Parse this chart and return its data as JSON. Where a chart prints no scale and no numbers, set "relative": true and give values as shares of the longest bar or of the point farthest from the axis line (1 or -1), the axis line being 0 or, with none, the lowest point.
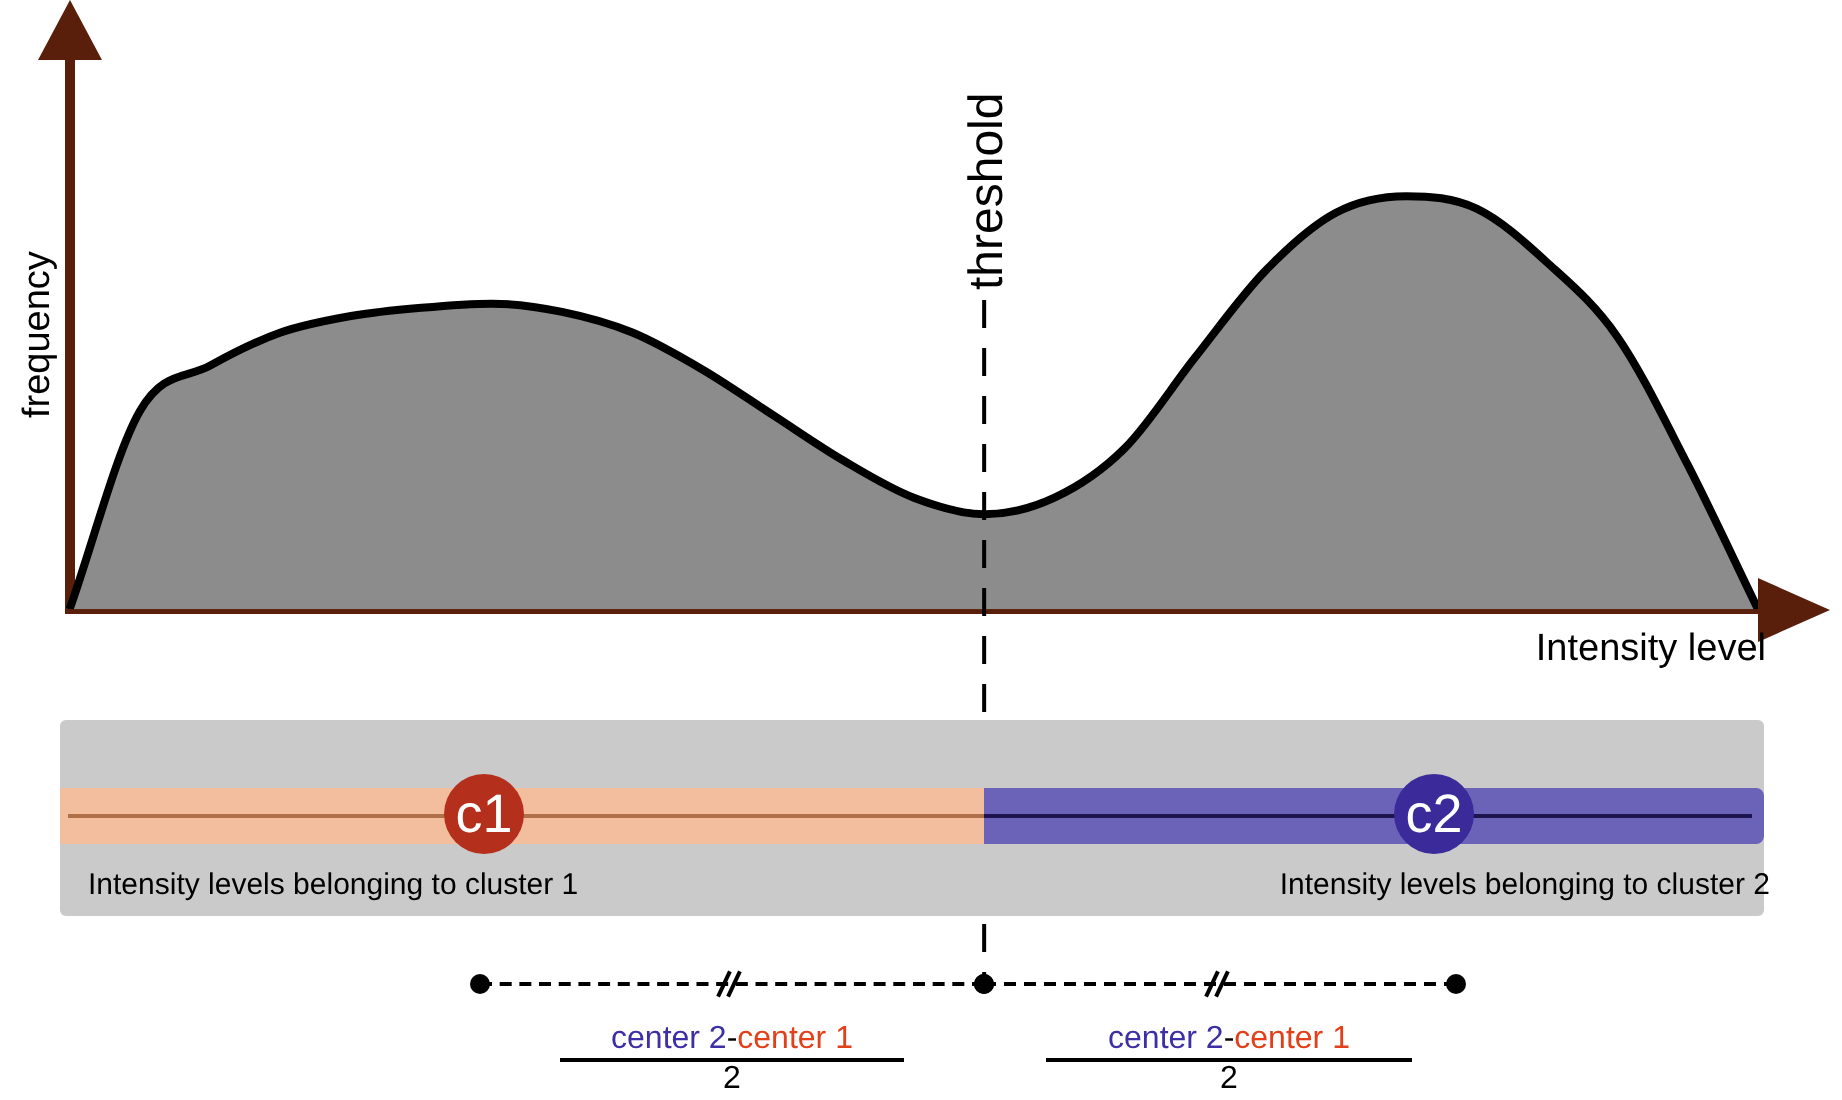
{
  "chart_data": {
    "type": "area",
    "relative": true,
    "ylabel": "frequency",
    "xlabel": "Intensity level",
    "categories": [
      null,
      null,
      null,
      null,
      null,
      null,
      null,
      null,
      null,
      null,
      null,
      null,
      null,
      null,
      null,
      null,
      null,
      null,
      null,
      null,
      null,
      null,
      null,
      null,
      null
    ],
    "series": [
      {
        "color": "#8c8c8c",
        "values": [
          0,
          0.48,
          0.59,
          0.67,
          0.71,
          0.73,
          0.74,
          0.72,
          0.67,
          0.58,
          0.47,
          0.36,
          0.27,
          0.23,
          0.27,
          0.39,
          0.61,
          0.82,
          0.96,
          1,
          0.97,
          0.84,
          0.66,
          0.35,
          0
        ]
      }
    ],
    "annotations": [
      "c1",
      "c2",
      "Intensity levels belonging to cluster 1",
      "Intensity levels belonging to cluster 2",
      "center 2",
      "-",
      "center 1",
      "2",
      "center 2",
      "-",
      "center 1",
      "2",
      "threshold"
    ],
    "legend": false,
    "grid": false
  }
}
